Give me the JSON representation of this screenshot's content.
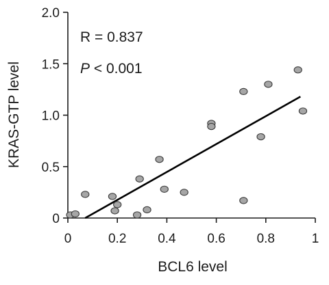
{
  "chart_data": {
    "type": "scatter",
    "xlabel": "BCL6  level",
    "ylabel": "KRAS-GTP level",
    "xlim": [
      0,
      1
    ],
    "ylim": [
      0,
      2
    ],
    "x_ticks": [
      0,
      0.2,
      0.4,
      0.6,
      0.8,
      1
    ],
    "x_tick_labels": [
      "0",
      "0.2",
      "0.4",
      "0.6",
      "0.8",
      "1"
    ],
    "y_ticks": [
      0,
      0.5,
      1,
      1.5,
      2
    ],
    "y_tick_labels": [
      "0",
      "0.5",
      "1.0",
      "1.5",
      "2.0"
    ],
    "grid": false,
    "annotations": {
      "r_text": "R = 0.837",
      "p_symbol": "P",
      "p_rest": " < 0.001"
    },
    "points": [
      {
        "x": 0.01,
        "y": 0.03
      },
      {
        "x": 0.03,
        "y": 0.04
      },
      {
        "x": 0.07,
        "y": 0.23
      },
      {
        "x": 0.18,
        "y": 0.21
      },
      {
        "x": 0.19,
        "y": 0.07
      },
      {
        "x": 0.2,
        "y": 0.13
      },
      {
        "x": 0.28,
        "y": 0.03
      },
      {
        "x": 0.29,
        "y": 0.38
      },
      {
        "x": 0.32,
        "y": 0.08
      },
      {
        "x": 0.37,
        "y": 0.57
      },
      {
        "x": 0.39,
        "y": 0.28
      },
      {
        "x": 0.47,
        "y": 0.25
      },
      {
        "x": 0.58,
        "y": 0.92
      },
      {
        "x": 0.58,
        "y": 0.89
      },
      {
        "x": 0.71,
        "y": 1.23
      },
      {
        "x": 0.71,
        "y": 0.17
      },
      {
        "x": 0.78,
        "y": 0.79
      },
      {
        "x": 0.81,
        "y": 1.3
      },
      {
        "x": 0.93,
        "y": 1.44
      },
      {
        "x": 0.95,
        "y": 1.04
      }
    ],
    "trendline": {
      "x": [
        0.07,
        0.94
      ],
      "y": [
        0.0,
        1.18
      ]
    },
    "colors": {
      "marker_fill": "#a6a6a6",
      "marker_stroke": "#3a3a3a",
      "line": "#000000",
      "axis": "#1a1a1a"
    }
  }
}
